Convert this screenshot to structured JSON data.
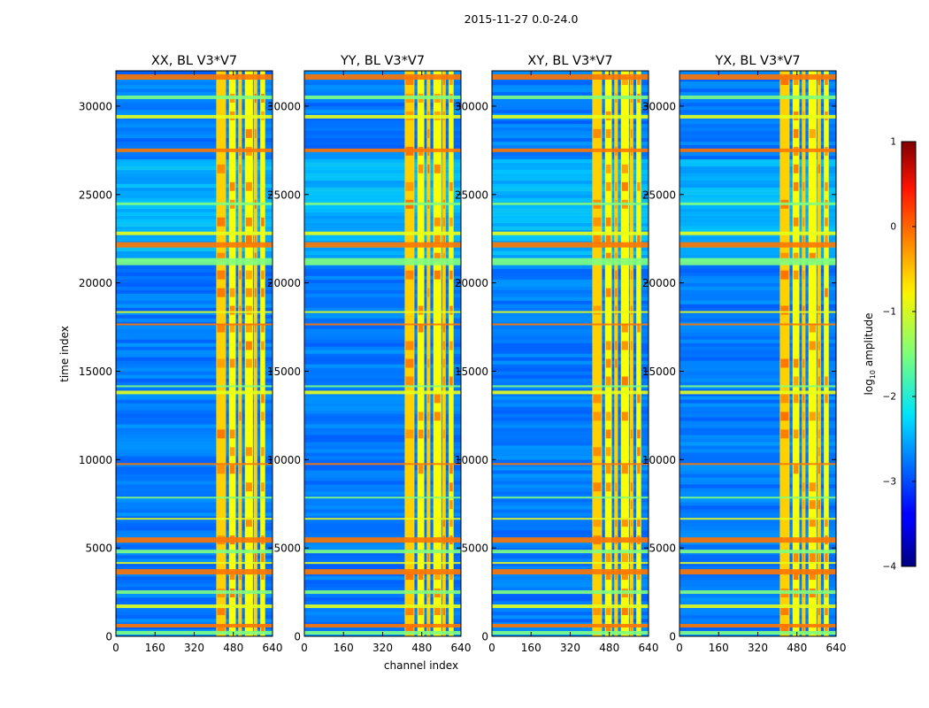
{
  "figure": {
    "suptitle": "2015-11-27 0.0-24.0"
  },
  "chart_data": {
    "type": "heatmap",
    "shared_x_label": "channel index",
    "shared_y_label": "time index",
    "x_range": [
      0,
      640
    ],
    "y_range": [
      0,
      32000
    ],
    "x_ticks": [
      0,
      160,
      320,
      480,
      640
    ],
    "y_ticks": [
      0,
      5000,
      10000,
      15000,
      20000,
      25000,
      30000
    ],
    "colormap": "jet",
    "colorbar": {
      "label": "log10 amplitude",
      "label_main": "log",
      "label_sub": "10",
      "label_tail": " amplitude",
      "range": [
        -4,
        1
      ],
      "ticks": [
        1,
        0,
        -1,
        -2,
        -3,
        -4
      ],
      "tick_labels": [
        "1",
        "0",
        "−1",
        "−2",
        "−3",
        "−4"
      ]
    },
    "panels": [
      {
        "title": "XX, BL V3*V7",
        "pol": "XX"
      },
      {
        "title": "YY, BL V3*V7",
        "pol": "YY"
      },
      {
        "title": "XY, BL V3*V7",
        "pol": "XY"
      },
      {
        "title": "YX, BL V3*V7",
        "pol": "YX"
      }
    ],
    "background_level_log10": -2.8,
    "bright_channel_bands": [
      [
        410,
        450
      ],
      [
        462,
        490
      ],
      [
        500,
        515
      ],
      [
        527,
        560
      ],
      [
        563,
        578
      ],
      [
        590,
        610
      ]
    ],
    "horizontal_flagged_rows": [
      [
        31500,
        31800
      ],
      [
        30400,
        30600
      ],
      [
        29300,
        29500
      ],
      [
        27400,
        27600
      ],
      [
        24400,
        24550
      ],
      [
        22700,
        22900
      ],
      [
        22000,
        22300
      ],
      [
        21000,
        21400
      ],
      [
        18300,
        18400
      ],
      [
        17600,
        17700
      ],
      [
        14100,
        14200
      ],
      [
        13700,
        13900
      ],
      [
        9700,
        9800
      ],
      [
        7800,
        7900
      ],
      [
        6600,
        6700
      ],
      [
        5300,
        5600
      ],
      [
        4700,
        4900
      ],
      [
        4100,
        4200
      ],
      [
        3500,
        3800
      ],
      [
        2400,
        2600
      ],
      [
        1600,
        1800
      ],
      [
        500,
        700
      ],
      [
        100,
        300
      ]
    ]
  }
}
